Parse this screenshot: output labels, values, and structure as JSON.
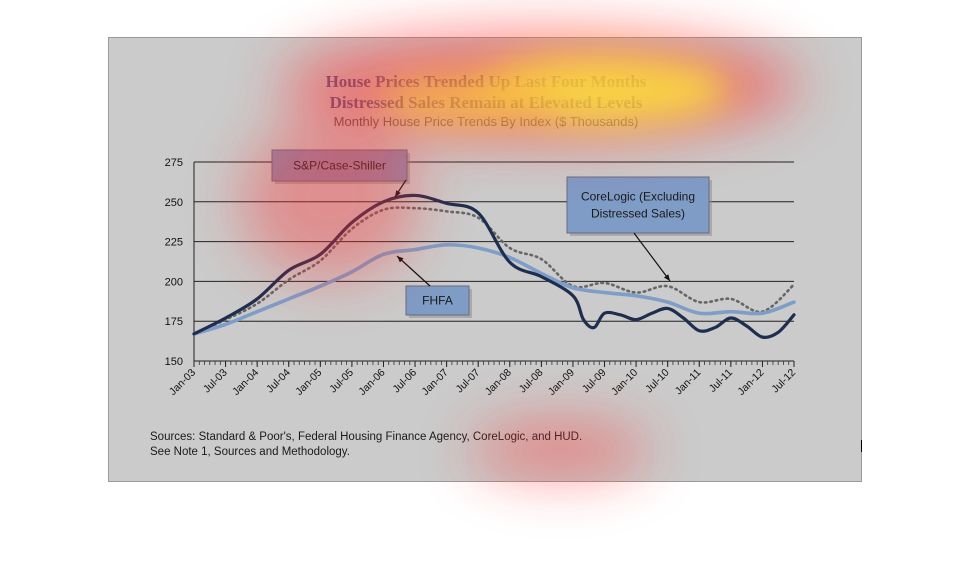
{
  "title_line1": "House Prices Trended Up Last Four Months",
  "title_line2": "Distressed Sales Remain at Elevated Levels",
  "subtitle": "Monthly House Price Trends By Index ($ Thousands)",
  "sources_line1": "Sources:  Standard & Poor's, Federal Housing Finance Agency, CoreLogic, and HUD.",
  "sources_line2": "See Note 1, Sources and Methodology.",
  "colors": {
    "case_shiller": "#1f2e4f",
    "corelogic": "#666666",
    "fhfa": "#7e9ec8",
    "callout_cs": "#8e8eb0",
    "callout_blue": "#7f9cc6",
    "gridline": "#222222",
    "frame_bg": "#cbcbcb"
  },
  "chart_data": {
    "type": "line",
    "ylim": [
      150,
      275
    ],
    "yticks": [
      150,
      175,
      200,
      225,
      250,
      275
    ],
    "grid": true,
    "xtick_labels": [
      "Jan-03",
      "Jul-03",
      "Jan-04",
      "Jul-04",
      "Jan-05",
      "Jul-05",
      "Jan-06",
      "Jul-06",
      "Jan-07",
      "Jul-07",
      "Jan-08",
      "Jul-08",
      "Jan-09",
      "Jul-09",
      "Jan-10",
      "Jul-10",
      "Jan-11",
      "Jul-11",
      "Jan-12",
      "Jul-12"
    ],
    "x_start": "Jan-03",
    "x_end": "Jul-12",
    "series": [
      {
        "name": "S&P/Case-Shiller",
        "style": "solid-dark",
        "x": [
          "Jan-03",
          "Jul-03",
          "Jan-04",
          "Jul-04",
          "Jan-05",
          "Jul-05",
          "Jan-06",
          "Jul-06",
          "Jan-07",
          "Jul-07",
          "Jan-08",
          "Jul-08",
          "Jan-09",
          "Mar-09",
          "May-09",
          "Jul-09",
          "Oct-09",
          "Jan-10",
          "Apr-10",
          "Jul-10",
          "Oct-10",
          "Jan-11",
          "Apr-11",
          "Jul-11",
          "Oct-11",
          "Jan-12",
          "Apr-12",
          "Jul-12"
        ],
        "values": [
          167,
          177,
          189,
          207,
          217,
          237,
          250,
          254,
          249,
          243,
          212,
          203,
          191,
          176,
          171,
          180,
          179,
          176,
          180,
          183,
          177,
          169,
          171,
          177,
          172,
          165,
          168,
          179
        ]
      },
      {
        "name": "CoreLogic (Excluding Distressed Sales)",
        "style": "dotted",
        "x": [
          "Jan-03",
          "Jul-03",
          "Jan-04",
          "Jul-04",
          "Jan-05",
          "Jul-05",
          "Jan-06",
          "Jul-06",
          "Jan-07",
          "Jul-07",
          "Jan-08",
          "Jul-08",
          "Jan-09",
          "Jul-09",
          "Jan-10",
          "Jul-10",
          "Jan-11",
          "Jul-11",
          "Jan-12",
          "Jul-12"
        ],
        "values": [
          167,
          176,
          186,
          201,
          213,
          233,
          245,
          246,
          244,
          240,
          221,
          214,
          197,
          199,
          193,
          197,
          187,
          189,
          181,
          198
        ]
      },
      {
        "name": "FHFA",
        "style": "solid-light",
        "x": [
          "Jan-03",
          "Jul-03",
          "Jan-04",
          "Jul-04",
          "Jan-05",
          "Jul-05",
          "Jan-06",
          "Jul-06",
          "Jan-07",
          "Jul-07",
          "Jan-08",
          "Jul-08",
          "Jan-09",
          "Jul-09",
          "Jan-10",
          "Jul-10",
          "Jan-11",
          "Jul-11",
          "Jan-12",
          "Jul-12"
        ],
        "values": [
          167,
          173,
          181,
          189,
          197,
          206,
          217,
          220,
          223,
          221,
          215,
          205,
          196,
          193,
          191,
          187,
          180,
          181,
          180,
          187
        ]
      }
    ],
    "annotations": [
      {
        "label": "S&P/Case-Shiller",
        "points_to_series": 0
      },
      {
        "label": "CoreLogic (Excluding Distressed Sales)",
        "points_to_series": 1
      },
      {
        "label": "FHFA",
        "points_to_series": 2
      }
    ]
  }
}
